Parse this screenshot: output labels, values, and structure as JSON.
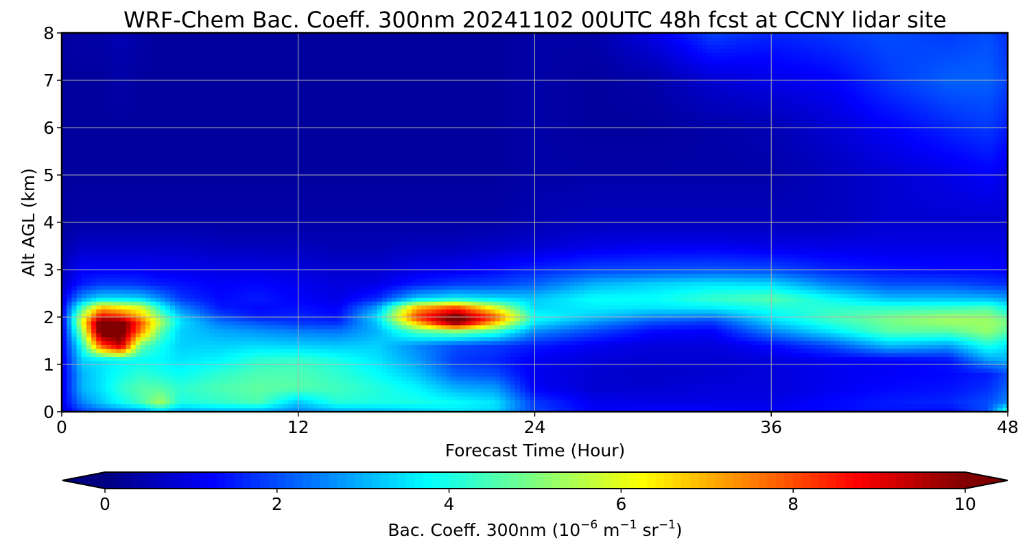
{
  "chart_data": {
    "type": "heatmap",
    "title": "WRF-Chem Bac. Coeff. 300nm  20241102 00UTC 48h fcst at CCNY lidar site",
    "xlabel": "Forecast Time (Hour)",
    "ylabel": "Alt AGL (km)",
    "xlim": [
      0,
      48
    ],
    "ylim": [
      0,
      8
    ],
    "xticks": [
      0,
      12,
      24,
      36,
      48
    ],
    "yticks": [
      0,
      1,
      2,
      3,
      4,
      5,
      6,
      7,
      8
    ],
    "grid": true,
    "colormap": "jet",
    "colorbar": {
      "orientation": "horizontal",
      "placement": "bottom",
      "range": [
        0,
        10
      ],
      "ticks": [
        0,
        2,
        4,
        6,
        8,
        10
      ],
      "extend": "both",
      "label_text": "Bac. Coeff. 300nm  (10",
      "label_exp1": "−6",
      "label_mid1": " m",
      "label_exp2": "−1",
      "label_mid2": " sr",
      "label_exp3": "−1",
      "label_end": ")"
    },
    "x_hours": [
      0,
      1,
      2,
      3,
      4,
      5,
      6,
      8,
      10,
      12,
      14,
      16,
      18,
      20,
      22,
      24,
      27,
      30,
      33,
      36,
      39,
      42,
      45,
      47,
      48
    ],
    "y_km": [
      0,
      0.2,
      0.5,
      0.8,
      1.1,
      1.4,
      1.7,
      1.9,
      2.0,
      2.2,
      2.4,
      2.7,
      3.0,
      3.5,
      4,
      5,
      6,
      7,
      8
    ],
    "values_by_time": [
      [
        0.8,
        1.0,
        1.0,
        1.0,
        1.0,
        1.0,
        1.0,
        1.0,
        1.0,
        1.0,
        0.9,
        0.7,
        0.6,
        0.4,
        0.3,
        0.3,
        0.3,
        0.3,
        0.3
      ],
      [
        1.8,
        2.5,
        3.0,
        3.0,
        3.3,
        3.9,
        5.0,
        5.9,
        5.6,
        4.4,
        2.7,
        1.5,
        1.2,
        0.7,
        0.4,
        0.3,
        0.3,
        0.3,
        0.4
      ],
      [
        2.2,
        3.2,
        3.5,
        3.5,
        3.5,
        8.0,
        10.5,
        10.5,
        9.0,
        7.0,
        3.4,
        1.8,
        1.2,
        0.7,
        0.4,
        0.3,
        0.3,
        0.3,
        0.4
      ],
      [
        2.5,
        3.8,
        4.2,
        3.9,
        3.7,
        9.5,
        10.5,
        10.5,
        8.5,
        6.5,
        3.4,
        1.8,
        1.2,
        0.7,
        0.4,
        0.3,
        0.3,
        0.4,
        0.5
      ],
      [
        2.6,
        4.4,
        4.6,
        4.2,
        3.8,
        4.8,
        7.5,
        8.0,
        7.0,
        6.0,
        3.3,
        1.7,
        1.2,
        0.7,
        0.4,
        0.3,
        0.3,
        0.3,
        0.4
      ],
      [
        3.2,
        5.4,
        4.6,
        4.0,
        3.7,
        3.9,
        4.7,
        5.5,
        5.0,
        4.0,
        2.6,
        1.5,
        1.1,
        0.7,
        0.4,
        0.3,
        0.3,
        0.3,
        0.3
      ],
      [
        2.8,
        4.0,
        4.2,
        3.8,
        3.5,
        3.3,
        3.3,
        3.5,
        3.3,
        2.6,
        1.8,
        1.4,
        1.1,
        0.7,
        0.4,
        0.3,
        0.3,
        0.3,
        0.3
      ],
      [
        3.0,
        4.2,
        4.5,
        4.2,
        3.7,
        3.3,
        2.9,
        2.4,
        2.0,
        1.5,
        1.3,
        1.2,
        1.0,
        0.6,
        0.4,
        0.3,
        0.3,
        0.3,
        0.3
      ],
      [
        2.9,
        4.5,
        4.7,
        4.5,
        4.2,
        3.4,
        2.7,
        2.0,
        1.5,
        1.3,
        1.5,
        1.3,
        1.0,
        0.6,
        0.4,
        0.3,
        0.3,
        0.3,
        0.3
      ],
      [
        2.5,
        3.2,
        4.6,
        4.5,
        4.3,
        3.3,
        2.5,
        1.7,
        1.6,
        1.4,
        1.2,
        1.1,
        0.9,
        0.6,
        0.4,
        0.3,
        0.3,
        0.3,
        0.3
      ],
      [
        2.9,
        4.1,
        4.4,
        4.2,
        4.0,
        3.2,
        2.4,
        1.6,
        1.4,
        1.2,
        1.0,
        0.9,
        0.8,
        0.5,
        0.4,
        0.3,
        0.3,
        0.3,
        0.3
      ],
      [
        3.0,
        4.0,
        4.1,
        3.8,
        3.5,
        3.3,
        3.0,
        3.2,
        3.5,
        2.8,
        1.6,
        1.0,
        0.8,
        0.5,
        0.4,
        0.3,
        0.3,
        0.3,
        0.3
      ],
      [
        3.2,
        4.0,
        3.7,
        3.2,
        2.8,
        2.6,
        4.5,
        7.0,
        8.2,
        7.0,
        3.2,
        1.5,
        1.0,
        0.6,
        0.4,
        0.3,
        0.3,
        0.3,
        0.3
      ],
      [
        3.5,
        3.8,
        3.0,
        2.2,
        1.8,
        2.0,
        5.0,
        10.5,
        10.5,
        8.2,
        3.6,
        1.8,
        1.1,
        0.6,
        0.4,
        0.3,
        0.3,
        0.3,
        0.3
      ],
      [
        3.3,
        3.5,
        2.8,
        2.0,
        1.6,
        1.8,
        4.3,
        7.0,
        8.0,
        6.0,
        3.4,
        1.9,
        1.3,
        0.7,
        0.4,
        0.3,
        0.3,
        0.3,
        0.3
      ],
      [
        1.9,
        1.8,
        1.2,
        1.1,
        1.1,
        1.5,
        2.6,
        3.6,
        3.9,
        3.4,
        3.2,
        2.2,
        1.6,
        0.8,
        0.5,
        0.4,
        0.4,
        0.4,
        0.4
      ],
      [
        1.2,
        1.1,
        0.8,
        0.8,
        0.9,
        1.1,
        1.9,
        2.7,
        3.2,
        3.6,
        3.8,
        3.0,
        1.9,
        1.0,
        0.6,
        0.4,
        0.3,
        0.3,
        0.4
      ],
      [
        1.3,
        1.0,
        0.8,
        0.7,
        0.8,
        0.9,
        1.3,
        2.0,
        2.6,
        3.5,
        3.8,
        3.3,
        2.0,
        1.1,
        0.6,
        0.4,
        0.3,
        0.4,
        1.0
      ],
      [
        1.3,
        1.0,
        0.9,
        0.8,
        0.8,
        0.9,
        1.2,
        1.8,
        2.4,
        3.6,
        4.3,
        3.5,
        2.1,
        1.1,
        0.6,
        0.4,
        0.4,
        0.8,
        1.9
      ],
      [
        1.2,
        1.0,
        0.9,
        0.9,
        0.9,
        1.3,
        2.5,
        3.3,
        3.6,
        4.0,
        4.6,
        3.4,
        2.0,
        1.0,
        0.6,
        0.4,
        0.5,
        1.0,
        1.6
      ],
      [
        1.3,
        1.3,
        1.1,
        1.1,
        1.1,
        2.0,
        3.5,
        4.2,
        4.4,
        4.2,
        3.8,
        2.5,
        1.6,
        1.0,
        0.6,
        0.6,
        0.8,
        1.2,
        1.8
      ],
      [
        1.4,
        1.5,
        1.3,
        1.2,
        1.2,
        3.1,
        4.6,
        4.9,
        4.9,
        4.2,
        3.1,
        2.0,
        1.4,
        1.0,
        0.8,
        0.8,
        1.2,
        1.8,
        2.0
      ],
      [
        1.3,
        1.6,
        1.4,
        1.3,
        1.4,
        2.8,
        4.6,
        5.3,
        5.3,
        4.3,
        3.1,
        2.0,
        1.3,
        1.0,
        0.8,
        1.0,
        1.6,
        2.2,
        1.8
      ],
      [
        2.0,
        2.0,
        1.7,
        1.5,
        2.8,
        4.0,
        5.2,
        5.3,
        5.2,
        4.5,
        3.0,
        1.8,
        1.3,
        1.0,
        0.8,
        1.2,
        1.8,
        2.2,
        2.0
      ],
      [
        4.5,
        2.6,
        2.2,
        2.0,
        3.0,
        3.5,
        4.6,
        5.0,
        4.6,
        3.8,
        2.8,
        1.7,
        1.2,
        1.0,
        0.8,
        1.0,
        1.5,
        1.9,
        1.7
      ]
    ]
  }
}
